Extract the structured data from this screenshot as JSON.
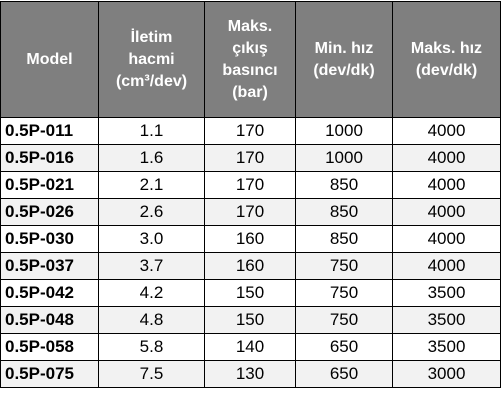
{
  "table": {
    "header": [
      [
        "Model"
      ],
      [
        "İletim",
        "hacmi",
        "(cm³/dev)"
      ],
      [
        "Maks.",
        "çıkış",
        "basıncı",
        "(bar)"
      ],
      [
        "Min. hız",
        "(dev/dk)"
      ],
      [
        "Maks. hız",
        "(dev/dk)"
      ]
    ],
    "rows": [
      [
        "0.5P-011",
        "1.1",
        "170",
        "1000",
        "4000"
      ],
      [
        "0.5P-016",
        "1.6",
        "170",
        "1000",
        "4000"
      ],
      [
        "0.5P-021",
        "2.1",
        "170",
        "850",
        "4000"
      ],
      [
        "0.5P-026",
        "2.6",
        "170",
        "850",
        "4000"
      ],
      [
        "0.5P-030",
        "3.0",
        "160",
        "850",
        "4000"
      ],
      [
        "0.5P-037",
        "3.7",
        "160",
        "750",
        "4000"
      ],
      [
        "0.5P-042",
        "4.2",
        "150",
        "750",
        "3500"
      ],
      [
        "0.5P-048",
        "4.8",
        "150",
        "750",
        "3500"
      ],
      [
        "0.5P-058",
        "5.8",
        "140",
        "650",
        "3500"
      ],
      [
        "0.5P-075",
        "7.5",
        "130",
        "650",
        "3000"
      ]
    ]
  }
}
